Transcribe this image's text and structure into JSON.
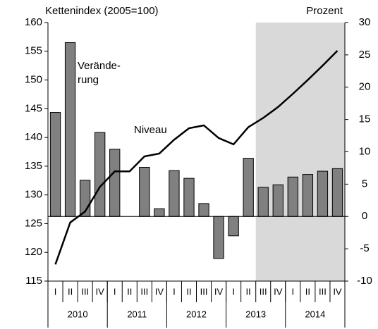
{
  "chart_data": {
    "type": "bar_line",
    "y_label": "Kettenindex (2005=100)",
    "y2_label": "Prozent",
    "categories": [
      "I",
      "II",
      "III",
      "IV",
      "I",
      "II",
      "III",
      "IV",
      "I",
      "II",
      "III",
      "IV",
      "I",
      "II",
      "III",
      "IV",
      "I",
      "II",
      "III",
      "IV"
    ],
    "years": [
      "2010",
      "2011",
      "2012",
      "2013",
      "2014"
    ],
    "series": [
      {
        "label": [
          "Verände-",
          "rung"
        ],
        "type": "bar",
        "axis": "y2",
        "color": "#808080",
        "values": [
          16.1,
          26.9,
          5.6,
          13.0,
          10.4,
          0.0,
          7.6,
          1.2,
          7.1,
          5.9,
          2.0,
          -6.5,
          -3.0,
          9.0,
          4.5,
          4.9,
          6.1,
          6.5,
          7.0,
          7.4
        ]
      },
      {
        "label": "Niveau",
        "type": "line",
        "axis": "y",
        "color": "#000000",
        "values": [
          117.9,
          125.2,
          127.1,
          131.4,
          134.1,
          134.1,
          136.7,
          137.2,
          139.6,
          141.6,
          142.1,
          139.9,
          138.8,
          141.8,
          143.4,
          145.3,
          147.6,
          150.0,
          152.5,
          155.1
        ]
      }
    ],
    "ylim": [
      115,
      160
    ],
    "yticks": [
      115,
      120,
      125,
      130,
      135,
      140,
      145,
      150,
      155,
      160
    ],
    "y2lim": [
      -10,
      30
    ],
    "y2ticks": [
      -10,
      -5,
      0,
      5,
      10,
      15,
      20,
      25,
      30
    ]
  }
}
